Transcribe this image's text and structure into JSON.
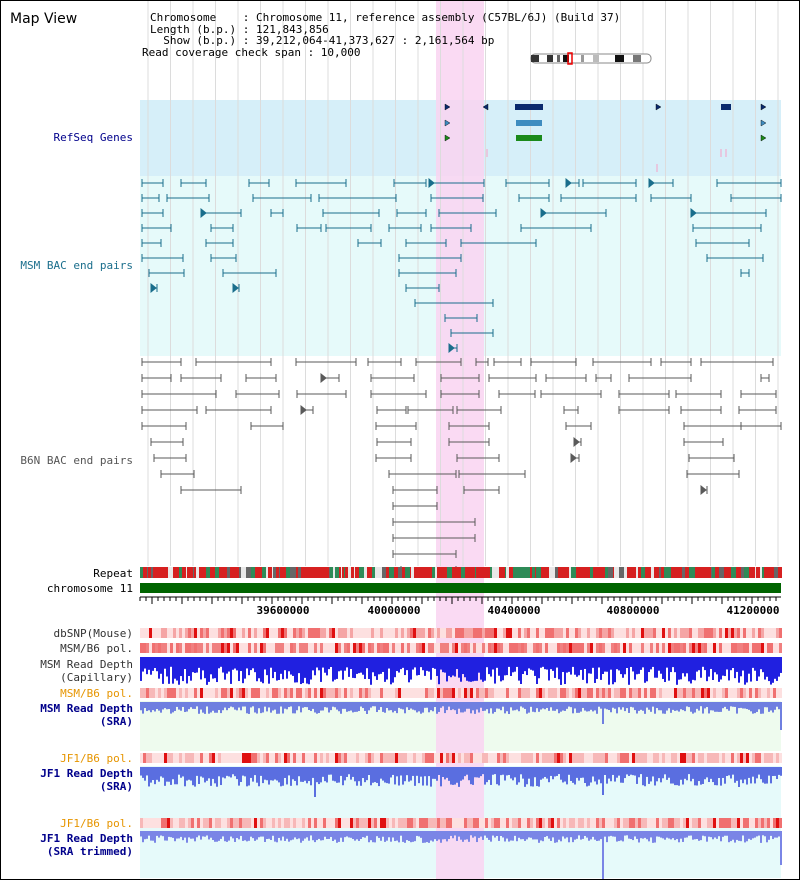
{
  "header": {
    "title": "Map View",
    "chromosome_line": "Chromosome    : Chromosome 11, reference assembly (C57BL/6J) (Build 37)",
    "length_line": "Length (b.p.) : 121,843,856",
    "show_line": "  Show (b.p.) : 39,212,064-41,373,627 : 2,161,564 bp",
    "coverage_line": "Read coverage check span : 10,000"
  },
  "tracks": {
    "refseq": "RefSeq Genes",
    "msm_bac": "MSM BAC end pairs",
    "b6n_bac": "B6N BAC end pairs",
    "repeat": "Repeat",
    "chromosome": "chromosome 11",
    "dbsnp": "dbSNP(Mouse)",
    "msm_b6_pol": "MSM/B6 pol.",
    "msm_depth_cap_1": "MSM Read Depth",
    "msm_depth_cap_2": "(Capillary)",
    "msm_b6_pol_2": "MSM/B6 pol.",
    "msm_depth_sra_1": "MSM Read Depth",
    "msm_depth_sra_2": "(SRA)",
    "jf1_b6_pol": "JF1/B6 pol.",
    "jf1_depth_sra_1": "JF1 Read Depth",
    "jf1_depth_sra_2": "(SRA)",
    "jf1_b6_pol_2": "JF1/B6 pol.",
    "jf1_depth_trim_1": "JF1 Read Depth",
    "jf1_depth_trim_2": "(SRA trimmed)"
  },
  "axis": {
    "ticks": [
      "39600000",
      "40000000",
      "40400000",
      "40800000",
      "41200000"
    ]
  },
  "colors": {
    "refseq_bg": "#d6eff9",
    "msm_bg": "#e6fafa",
    "highlight": "#f9d4f1",
    "label_blue": "#00008b",
    "label_orange": "#e69500",
    "msm_feature": "#1a6e8c",
    "b6n_feature": "#5a5a5a",
    "chrom_bar": "#006400",
    "depth_blue": "#2020e0"
  }
}
